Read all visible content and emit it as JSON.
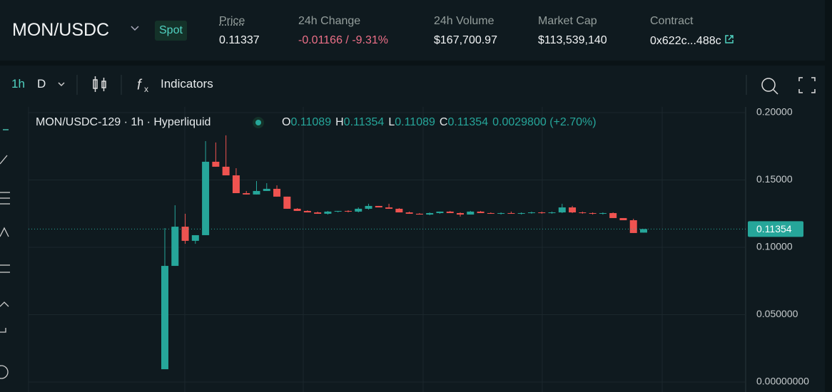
{
  "header": {
    "pair": "MON/USDC",
    "tag": "Spot",
    "stats": [
      {
        "label": "Price",
        "value": "0.11337"
      },
      {
        "label": "24h Change",
        "value": "-0.01166 / -9.31%"
      },
      {
        "label": "24h Volume",
        "value": "$167,700.97"
      },
      {
        "label": "Market Cap",
        "value": "$113,539,140"
      },
      {
        "label": "Contract",
        "value": "0x622c...488c"
      }
    ]
  },
  "toolbar": {
    "interval": "1h",
    "range": "D",
    "indicators": "Indicators"
  },
  "legend": {
    "symbol": "MON/USDC-129 · 1h · Hyperliquid",
    "items": [
      {
        "label": "O",
        "value": "0.11089"
      },
      {
        "label": "H",
        "value": "0.11354"
      },
      {
        "label": "L",
        "value": "0.11089"
      },
      {
        "label": "C",
        "value": "0.11354"
      }
    ],
    "change": "0.0029800 (+2.70%)"
  },
  "chart_data": {
    "type": "candlestick",
    "up_color": "#26a69a",
    "down_color": "#ef5350",
    "ylim": [
      -0.0074,
      0.2042
    ],
    "yticks": [
      {
        "value": 0,
        "label": "0.00000000"
      },
      {
        "value": 0.05,
        "label": "0.050000"
      },
      {
        "value": 0.1,
        "label": "0.10000"
      },
      {
        "value": 0.15,
        "label": "0.15000"
      },
      {
        "value": 0.2,
        "label": "0.20000"
      }
    ],
    "last_price": 0.11354,
    "open": [
      0.0095,
      0.0862,
      0.1153,
      0.1048,
      0.109,
      0.1635,
      0.1598,
      0.1534,
      0.1402,
      0.1392,
      0.1418,
      0.1434,
      0.1376,
      0.1286,
      0.127,
      0.1259,
      0.1249,
      0.1265,
      0.127,
      0.1265,
      0.1286,
      0.1307,
      0.1296,
      0.1286,
      0.1259,
      0.1249,
      0.1243,
      0.1254,
      0.1265,
      0.1254,
      0.1243,
      0.1265,
      0.1254,
      0.1249,
      0.1254,
      0.1249,
      0.1254,
      0.1259,
      0.1254,
      0.1259,
      0.1296,
      0.1259,
      0.1254,
      0.1249,
      0.1254,
      0.1217,
      0.1201,
      0.11089
    ],
    "high": [
      0.1143,
      0.1312,
      0.1249,
      0.109,
      0.1788,
      0.1778,
      0.1831,
      0.1587,
      0.1418,
      0.1492,
      0.1476,
      0.146,
      0.1376,
      0.1291,
      0.1275,
      0.1265,
      0.127,
      0.127,
      0.1275,
      0.1296,
      0.1323,
      0.1307,
      0.1323,
      0.1291,
      0.1265,
      0.1254,
      0.1259,
      0.1265,
      0.127,
      0.1259,
      0.127,
      0.127,
      0.1259,
      0.1259,
      0.1265,
      0.1259,
      0.1265,
      0.1265,
      0.1265,
      0.1323,
      0.1307,
      0.1265,
      0.1259,
      0.1259,
      0.1259,
      0.1217,
      0.1212,
      0.11354
    ],
    "low": [
      0.0095,
      0.0862,
      0.1026,
      0.1026,
      0.109,
      0.1598,
      0.1534,
      0.1402,
      0.1392,
      0.1392,
      0.1418,
      0.1376,
      0.1286,
      0.127,
      0.1259,
      0.1249,
      0.1243,
      0.1259,
      0.1259,
      0.1259,
      0.128,
      0.1296,
      0.1286,
      0.1259,
      0.1249,
      0.1243,
      0.1238,
      0.1249,
      0.1254,
      0.1228,
      0.1243,
      0.1254,
      0.1249,
      0.1243,
      0.1249,
      0.1243,
      0.1249,
      0.1249,
      0.1249,
      0.1254,
      0.1254,
      0.1249,
      0.1243,
      0.1243,
      0.1217,
      0.1201,
      0.1106,
      0.11089
    ],
    "close": [
      0.0862,
      0.1153,
      0.1048,
      0.109,
      0.1635,
      0.1598,
      0.1534,
      0.1402,
      0.1392,
      0.1418,
      0.1434,
      0.1376,
      0.1286,
      0.127,
      0.1259,
      0.1249,
      0.1265,
      0.127,
      0.1265,
      0.1286,
      0.1307,
      0.1296,
      0.1286,
      0.1259,
      0.1249,
      0.1243,
      0.1254,
      0.1265,
      0.1254,
      0.1243,
      0.1265,
      0.1254,
      0.1249,
      0.1254,
      0.1249,
      0.1254,
      0.1259,
      0.1254,
      0.1259,
      0.1296,
      0.1259,
      0.1254,
      0.1249,
      0.1254,
      0.1217,
      0.1201,
      0.1106,
      0.11354
    ]
  }
}
